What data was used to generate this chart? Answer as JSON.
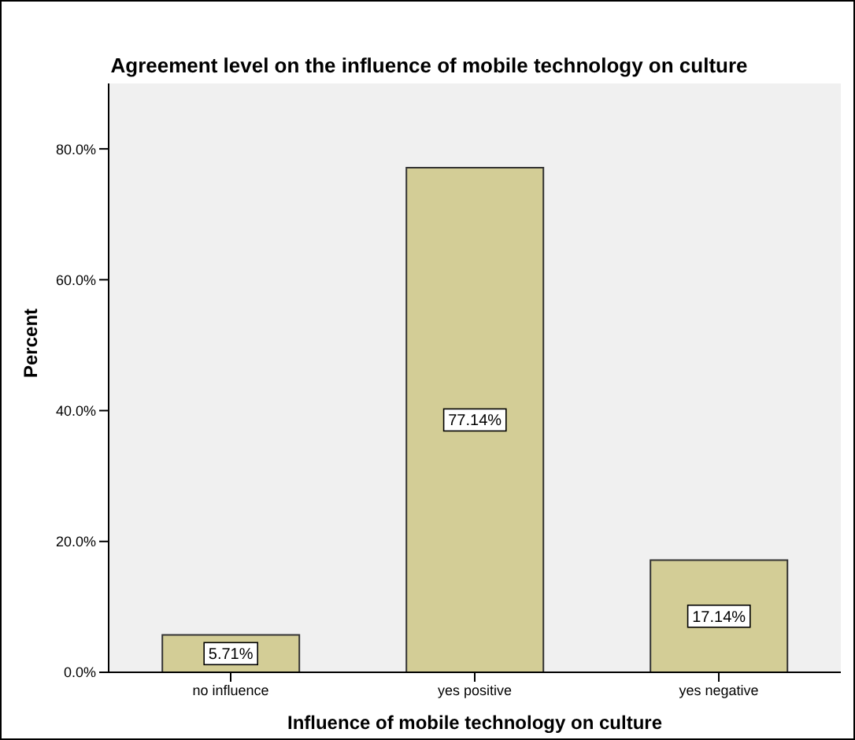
{
  "chart_data": {
    "type": "bar",
    "title": "Agreement level on the influence of mobile technology on culture",
    "xlabel": "Influence of  mobile technology on culture",
    "ylabel": "Percent",
    "categories": [
      "no influence",
      "yes positive",
      "yes negative"
    ],
    "values": [
      5.71,
      77.14,
      17.14
    ],
    "value_labels": [
      "5.71%",
      "77.14%",
      "17.14%"
    ],
    "color": "#d3cd96",
    "ylim": [
      0,
      90
    ],
    "yticks": [
      {
        "value": 0,
        "label": "0.0%"
      },
      {
        "value": 20,
        "label": "20.0%"
      },
      {
        "value": 40,
        "label": "40.0%"
      },
      {
        "value": 60,
        "label": "60.0%"
      },
      {
        "value": 80,
        "label": "80.0%"
      }
    ]
  }
}
